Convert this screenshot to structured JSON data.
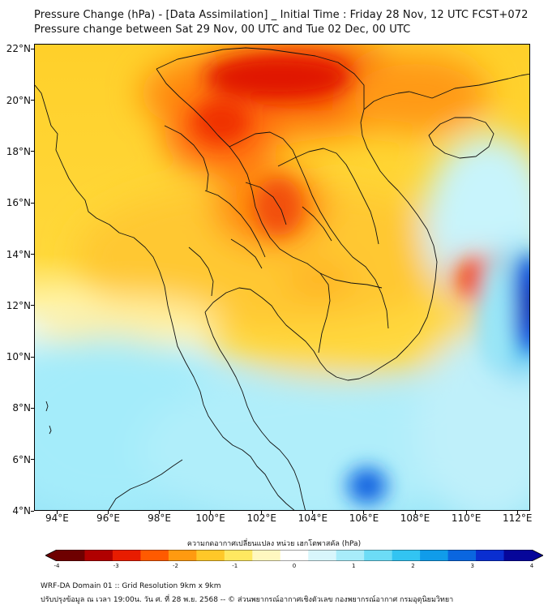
{
  "header": {
    "title_line1": "Pressure Change (hPa) - [Data Assimilation] _ Initial Time : Friday 28 Nov, 12 UTC FCST+072",
    "title_line2": "Pressure change between Sat 29 Nov, 00 UTC and Tue 02 Dec, 00 UTC"
  },
  "map": {
    "lat_labels": [
      "22°N",
      "20°N",
      "18°N",
      "16°N",
      "14°N",
      "12°N",
      "10°N",
      "8°N",
      "6°N",
      "4°N"
    ],
    "lon_labels": [
      "94°E",
      "96°E",
      "98°E",
      "100°E",
      "102°E",
      "104°E",
      "106°E",
      "108°E",
      "110°E",
      "112°E"
    ],
    "lat_range": [
      4,
      22.2
    ],
    "lon_range": [
      93.1,
      112.5
    ]
  },
  "colorbar": {
    "title": "ความกดอากาศเปลี่ยนแปลง หน่วย เฮกโตพาสคัล (hPa)",
    "tick_labels": [
      "-4",
      "-3",
      "-2",
      "-1",
      "0",
      "1",
      "2",
      "3",
      "4"
    ],
    "colors": [
      "#6e0000",
      "#b00000",
      "#e81c00",
      "#ff5a00",
      "#ff9a10",
      "#ffc828",
      "#ffe860",
      "#fff8c0",
      "#ffffff",
      "#d8f6fc",
      "#a8ecfa",
      "#6cdcf6",
      "#32c4f2",
      "#109cea",
      "#0a66e0",
      "#0a2ed0",
      "#06069a"
    ]
  },
  "footer": {
    "line1": "WRF-DA Domain 01 :: Grid Resolution 9km x 9km",
    "line2": "ปรับปรุงข้อมูล ณ เวลา 19:00น. วัน ศ. ที่ 28 พ.ย. 2568 -- © ส่วนพยากรณ์อากาศเชิงตัวเลข กองพยากรณ์อากาศ กรมอุตุนิยมวิทยา"
  }
}
